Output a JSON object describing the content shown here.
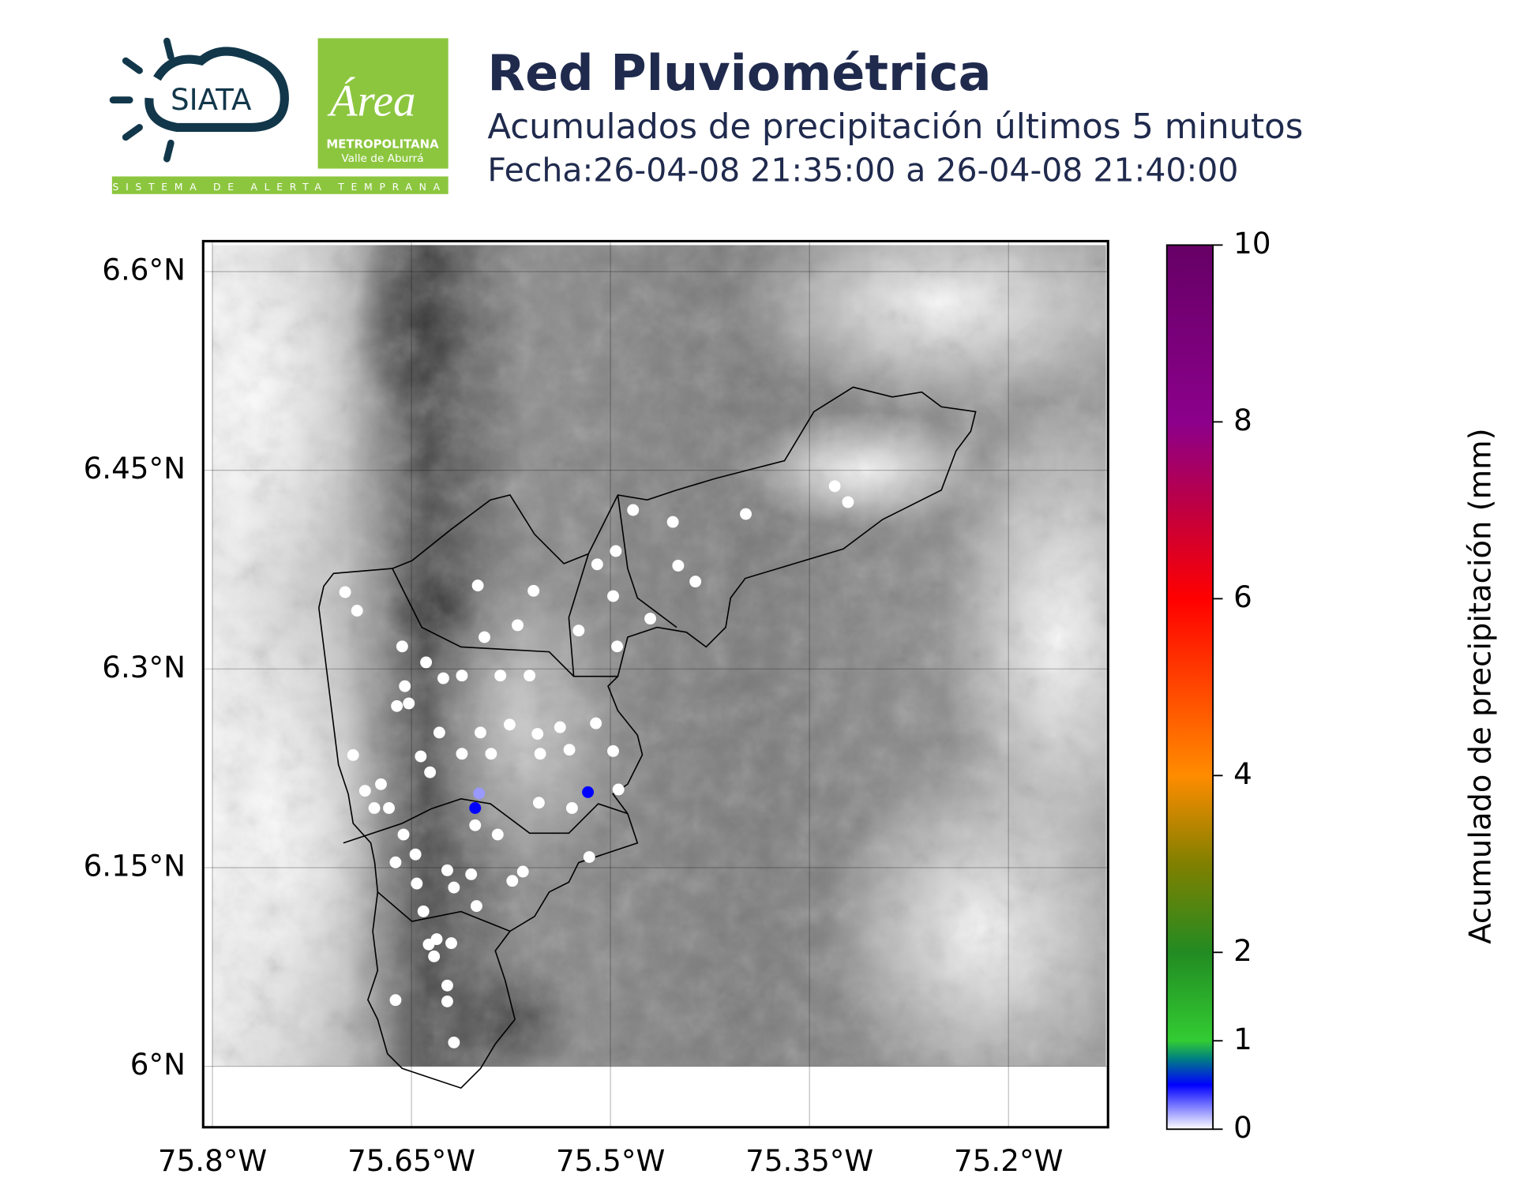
{
  "header": {
    "logo_siata": "SIATA",
    "logo_area": "Área",
    "logo_metro": "METROPOLITANA",
    "logo_valle": "Valle de Aburrá",
    "logo_tagline": "SISTEMA DE ALERTA TEMPRANA",
    "title": "Red Pluviométrica",
    "subtitle": "Acumulados de precipitación últimos 5 minutos",
    "date": "Fecha:26-04-08 21:35:00 a 26-04-08 21:40:00"
  },
  "map": {
    "type": "scatter",
    "xlim": [
      -75.807,
      -75.125
    ],
    "ylim": [
      5.954,
      6.623
    ],
    "xticks": [
      {
        "value": -75.8,
        "label": "75.8°W"
      },
      {
        "value": -75.65,
        "label": "75.65°W"
      },
      {
        "value": -75.5,
        "label": "75.5°W"
      },
      {
        "value": -75.35,
        "label": "75.35°W"
      },
      {
        "value": -75.2,
        "label": "75.2°W"
      }
    ],
    "yticks": [
      {
        "value": 6.6,
        "label": "6.6°N"
      },
      {
        "value": 6.45,
        "label": "6.45°N"
      },
      {
        "value": 6.3,
        "label": "6.3°N"
      },
      {
        "value": 6.15,
        "label": "6.15°N"
      },
      {
        "value": 6,
        "label": "6°N"
      }
    ],
    "grid": true,
    "stations": {
      "lon": [
        -75.7,
        -75.691,
        -75.6,
        -75.558,
        -75.483,
        -75.453,
        -75.398,
        -75.331,
        -75.321,
        -75.51,
        -75.496,
        -75.449,
        -75.436,
        -75.498,
        -75.47,
        -75.495,
        -75.524,
        -75.657,
        -75.639,
        -75.595,
        -75.57,
        -75.583,
        -75.561,
        -75.612,
        -75.626,
        -75.655,
        -75.661,
        -75.652,
        -75.629,
        -75.598,
        -75.576,
        -75.555,
        -75.538,
        -75.511,
        -75.694,
        -75.643,
        -75.612,
        -75.59,
        -75.553,
        -75.531,
        -75.498,
        -75.636,
        -75.685,
        -75.673,
        -75.678,
        -75.667,
        -75.494,
        -75.554,
        -75.529,
        -75.656,
        -75.585,
        -75.516,
        -75.662,
        -75.647,
        -75.623,
        -75.605,
        -75.566,
        -75.646,
        -75.574,
        -75.618,
        -75.601,
        -75.641,
        -75.62,
        -75.631,
        -75.637,
        -75.633,
        -75.623,
        -75.662,
        -75.623,
        -75.618,
        -75.602,
        -75.599,
        -75.602,
        -75.517
      ],
      "lat": [
        6.358,
        6.344,
        6.363,
        6.359,
        6.42,
        6.411,
        6.417,
        6.438,
        6.426,
        6.379,
        6.389,
        6.378,
        6.366,
        6.355,
        6.338,
        6.317,
        6.329,
        6.317,
        6.305,
        6.324,
        6.333,
        6.295,
        6.295,
        6.295,
        6.293,
        6.287,
        6.272,
        6.274,
        6.252,
        6.252,
        6.258,
        6.251,
        6.256,
        6.259,
        6.235,
        6.234,
        6.236,
        6.236,
        6.236,
        6.239,
        6.238,
        6.222,
        6.208,
        6.213,
        6.195,
        6.195,
        6.209,
        6.199,
        6.195,
        6.175,
        6.175,
        6.158,
        6.154,
        6.16,
        6.148,
        6.145,
        6.147,
        6.138,
        6.14,
        6.135,
        6.121,
        6.117,
        6.093,
        6.096,
        6.092,
        6.083,
        6.061,
        6.05,
        6.049,
        6.018,
        6.182,
        6.206,
        6.195,
        6.207
      ],
      "values": [
        0,
        0,
        0,
        0,
        0,
        0,
        0,
        0,
        0,
        0,
        0,
        0,
        0,
        0,
        0,
        0,
        0,
        0,
        0,
        0,
        0,
        0,
        0,
        0,
        0,
        0,
        0,
        0,
        0,
        0,
        0,
        0,
        0,
        0,
        0,
        0,
        0,
        0,
        0,
        0,
        0,
        0,
        0,
        0,
        0,
        0,
        0,
        0,
        0,
        0,
        0,
        0,
        0,
        0,
        0,
        0,
        0,
        0,
        0,
        0,
        0,
        0,
        0,
        0,
        0,
        0,
        0,
        0,
        0,
        0,
        0,
        0.2,
        0.5,
        0.5
      ]
    }
  },
  "colorbar": {
    "label": "Acumulado de precipitación (mm)",
    "lim": [
      0,
      10
    ],
    "ticks": [
      0,
      1,
      2,
      4,
      6,
      8,
      10
    ],
    "colormap": [
      {
        "value": 0,
        "color": "#ffffff"
      },
      {
        "value": 0.5,
        "color": "#0000ff"
      },
      {
        "value": 0.8,
        "color": "#008080"
      },
      {
        "value": 1,
        "color": "#33cc33"
      },
      {
        "value": 2,
        "color": "#228b22"
      },
      {
        "value": 3,
        "color": "#808000"
      },
      {
        "value": 4,
        "color": "#ff8c00"
      },
      {
        "value": 6,
        "color": "#ff0000"
      },
      {
        "value": 7,
        "color": "#c00040"
      },
      {
        "value": 8,
        "color": "#8b008b"
      },
      {
        "value": 10,
        "color": "#660066"
      }
    ]
  }
}
